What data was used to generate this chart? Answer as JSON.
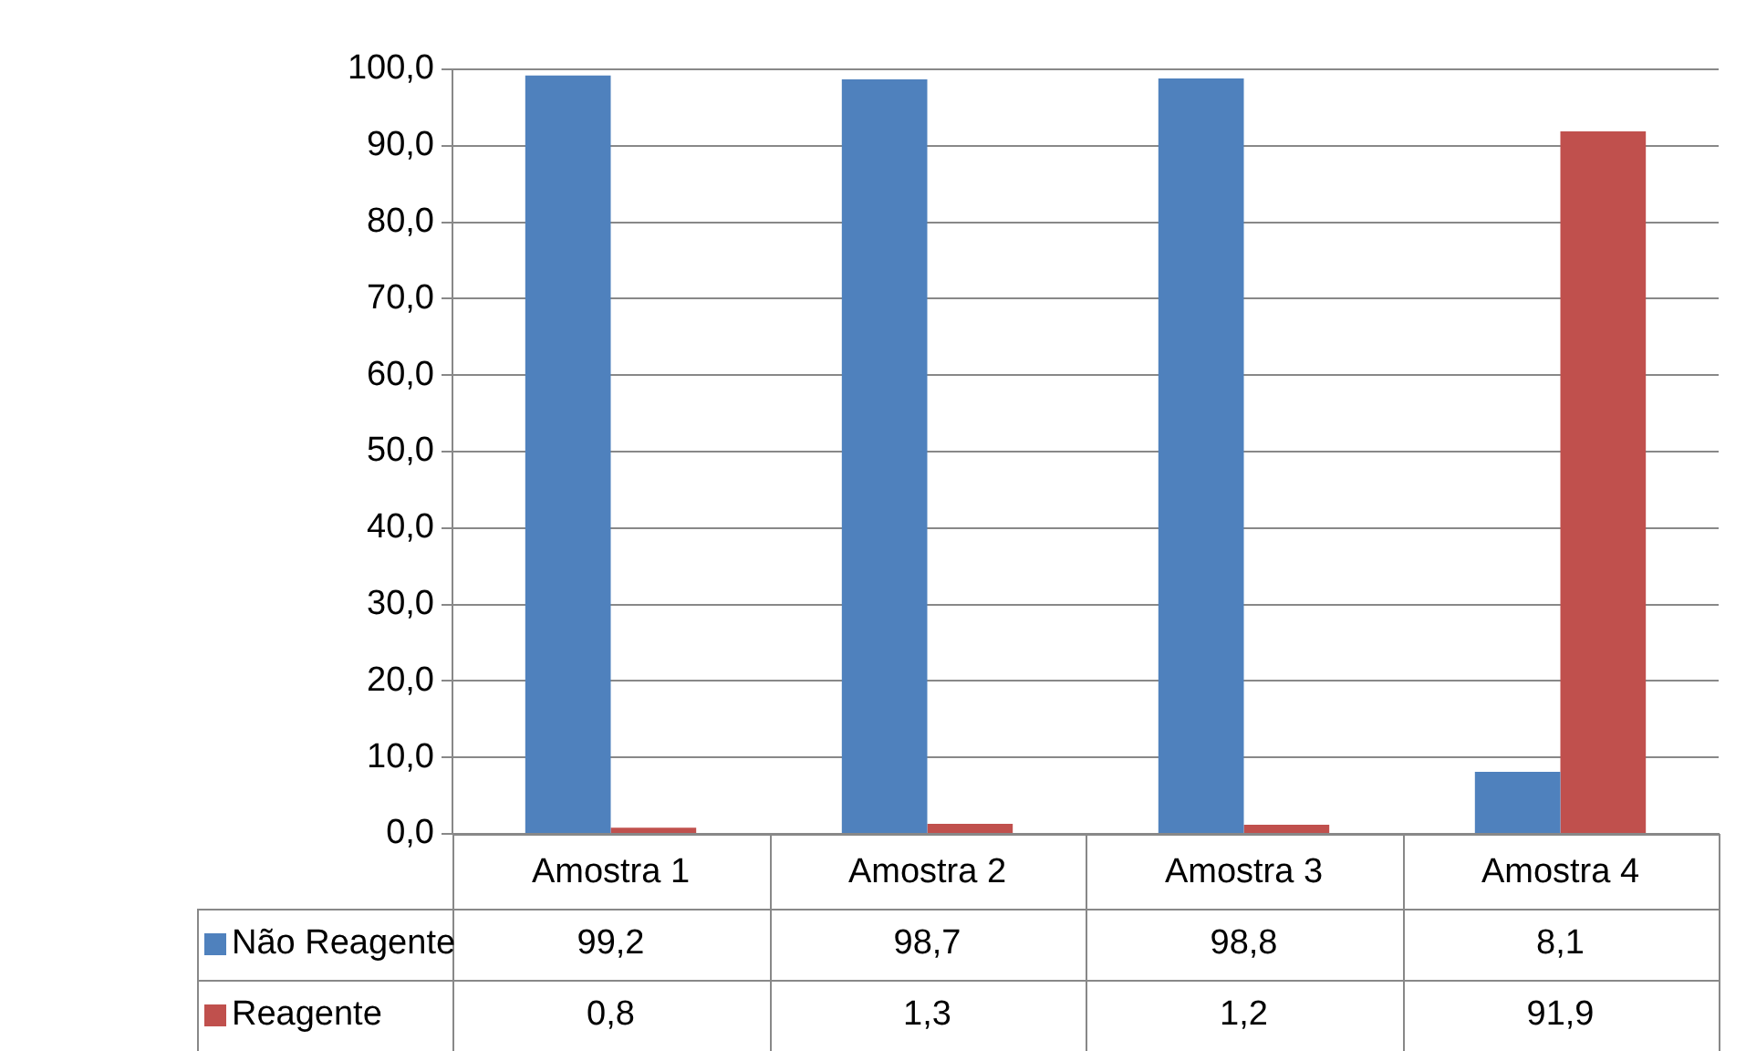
{
  "chart_data": {
    "type": "bar",
    "categories": [
      "Amostra 1",
      "Amostra 2",
      "Amostra 3",
      "Amostra 4"
    ],
    "series": [
      {
        "name": "Não Reagente",
        "color": "#4f81bd",
        "values": [
          99.2,
          98.7,
          98.8,
          8.1
        ],
        "value_labels": [
          "99,2",
          "98,7",
          "98,8",
          "8,1"
        ]
      },
      {
        "name": "Reagente",
        "color": "#c0504d",
        "values": [
          0.8,
          1.3,
          1.2,
          91.9
        ],
        "value_labels": [
          "0,8",
          "1,3",
          "1,2",
          "91,9"
        ]
      }
    ],
    "ylim": [
      0,
      100
    ],
    "yticks": [
      {
        "value": 0,
        "label": "0,0"
      },
      {
        "value": 10,
        "label": "10,0"
      },
      {
        "value": 20,
        "label": "20,0"
      },
      {
        "value": 30,
        "label": "30,0"
      },
      {
        "value": 40,
        "label": "40,0"
      },
      {
        "value": 50,
        "label": "50,0"
      },
      {
        "value": 60,
        "label": "60,0"
      },
      {
        "value": 70,
        "label": "70,0"
      },
      {
        "value": 80,
        "label": "80,0"
      },
      {
        "value": 90,
        "label": "90,0"
      },
      {
        "value": 100,
        "label": "100,0"
      }
    ],
    "grid": "y",
    "legend": "bottom left"
  }
}
